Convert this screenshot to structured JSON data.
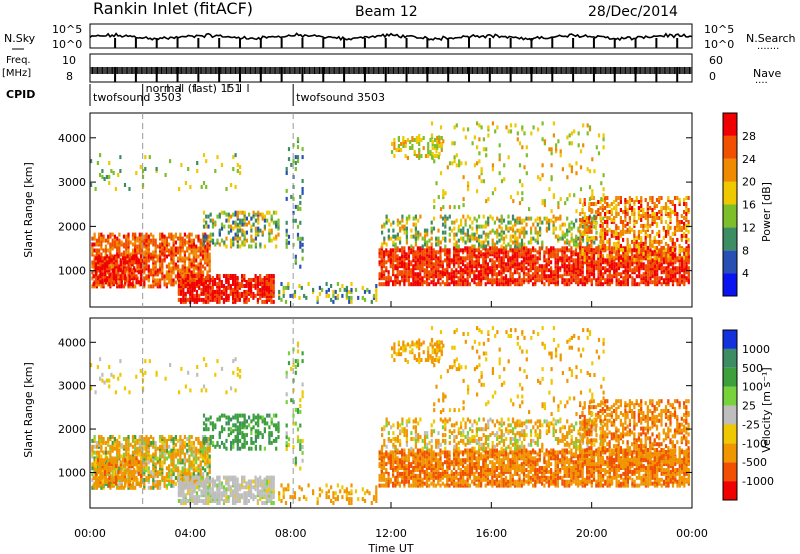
{
  "chart_data": {
    "type": "heatmap",
    "header": {
      "title": "Rankin Inlet (fitACF)",
      "beam": "Beam 12",
      "date": "28/Dec/2014"
    },
    "top_panels": {
      "nsky_label": "N.Sky",
      "nsky_ticks": [
        "10^5",
        "10^0"
      ],
      "nsearch_label": "N.Search",
      "freq_label": "Freq.",
      "freq_unit": "[MHz]",
      "freq_ticks": [
        "10",
        "8"
      ],
      "nave_label": "Nave",
      "nave_ticks": [
        "60",
        "0"
      ],
      "cpid_label": "CPID",
      "modes": [
        {
          "label": "twofsound 3503",
          "start_hour": 0.0
        },
        {
          "label": "normal (fast) 151",
          "start_hour": 2.1
        },
        {
          "label": "twofsound 3503",
          "start_hour": 8.1
        }
      ]
    },
    "x_axis": {
      "label": "Time UT",
      "range_hours": [
        0,
        24
      ],
      "tick_labels": [
        "00:00",
        "04:00",
        "08:00",
        "12:00",
        "16:00",
        "20:00",
        "00:00"
      ]
    },
    "y_axis": {
      "label": "Slant Range [km]",
      "range_km": [
        180,
        4560
      ],
      "tick_labels": [
        "1000",
        "2000",
        "3000",
        "4000"
      ]
    },
    "power_scale": {
      "label": "Power [dB]",
      "tick_labels": [
        "4",
        "8",
        "12",
        "16",
        "20",
        "24",
        "28"
      ],
      "colors": [
        "#0a14f0",
        "#2850b4",
        "#3c8c64",
        "#7cbf2a",
        "#f0c800",
        "#f08a00",
        "#f05000",
        "#f00000"
      ]
    },
    "velocity_scale": {
      "label": "Velocity [m s⁻¹]",
      "tick_labels": [
        "1000",
        "500",
        "100",
        "25",
        "-25",
        "-100",
        "-500",
        "-1000"
      ],
      "colors": [
        "#1432dc",
        "#3c8c64",
        "#3ca03c",
        "#78d23c",
        "#bebebe",
        "#f0c800",
        "#f09600",
        "#f05000",
        "#f00000"
      ]
    },
    "echo_regions": [
      {
        "t0": 0.05,
        "t1": 4.8,
        "r0": 600,
        "r1": 1800,
        "p": 0.55,
        "pw": [
          20,
          30
        ],
        "vel": [
          -400,
          150
        ]
      },
      {
        "t0": 0.1,
        "t1": 2.0,
        "r0": 650,
        "r1": 1300,
        "p": 0.45,
        "pw": [
          26,
          32
        ],
        "vel": [
          -600,
          -50
        ]
      },
      {
        "t0": 3.5,
        "t1": 7.3,
        "r0": 250,
        "r1": 850,
        "p": 0.55,
        "pw": [
          26,
          32
        ],
        "vel": [
          -30,
          30
        ]
      },
      {
        "t0": 4.5,
        "t1": 7.5,
        "r0": 1500,
        "r1": 2300,
        "p": 0.3,
        "pw": [
          6,
          22
        ],
        "vel": [
          50,
          600
        ]
      },
      {
        "t0": 0.0,
        "t1": 6.0,
        "r0": 2800,
        "r1": 3600,
        "p": 0.05,
        "pw": [
          10,
          20
        ],
        "vel": [
          -100,
          0
        ]
      },
      {
        "t0": 7.5,
        "t1": 11.5,
        "r0": 250,
        "r1": 700,
        "p": 0.18,
        "pw": [
          6,
          20
        ],
        "vel": [
          -400,
          -50
        ]
      },
      {
        "t0": 7.8,
        "t1": 8.5,
        "r0": 1000,
        "r1": 4000,
        "p": 0.1,
        "pw": [
          4,
          16
        ],
        "vel": [
          -100,
          200
        ]
      },
      {
        "t0": 11.5,
        "t1": 23.9,
        "r0": 650,
        "r1": 1500,
        "p": 0.6,
        "pw": [
          24,
          32
        ],
        "vel": [
          -800,
          -100
        ]
      },
      {
        "t0": 11.6,
        "t1": 20.5,
        "r0": 1500,
        "r1": 2200,
        "p": 0.25,
        "pw": [
          8,
          24
        ],
        "vel": [
          -300,
          100
        ]
      },
      {
        "t0": 19.5,
        "t1": 23.9,
        "r0": 1200,
        "r1": 2600,
        "p": 0.35,
        "pw": [
          16,
          30
        ],
        "vel": [
          -700,
          -100
        ]
      },
      {
        "t0": 12.0,
        "t1": 14.0,
        "r0": 3500,
        "r1": 4000,
        "p": 0.3,
        "pw": [
          12,
          22
        ],
        "vel": [
          -200,
          -50
        ]
      },
      {
        "t0": 13.5,
        "t1": 20.5,
        "r0": 2300,
        "r1": 4300,
        "p": 0.05,
        "pw": [
          12,
          22
        ],
        "vel": [
          -200,
          -25
        ]
      }
    ]
  }
}
